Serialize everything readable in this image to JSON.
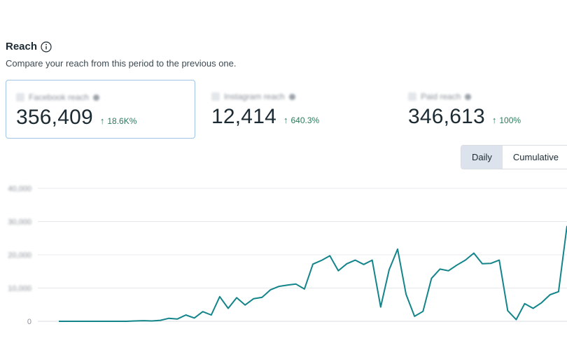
{
  "header": {
    "title": "Reach",
    "subtitle": "Compare your reach from this period to the previous one."
  },
  "cards": [
    {
      "label": "Facebook reach",
      "value": "356,409",
      "delta": "18.6K%",
      "selected": true
    },
    {
      "label": "Instagram reach",
      "value": "12,414",
      "delta": "640.3%",
      "selected": false
    },
    {
      "label": "Paid reach",
      "value": "346,613",
      "delta": "100%",
      "selected": false
    }
  ],
  "toggle": {
    "daily_label": "Daily",
    "cumulative_label": "Cumulative",
    "selected": "Daily"
  },
  "colors": {
    "line": "#13858a",
    "delta": "#2c7a5b",
    "selected_border": "#9fc4e8"
  },
  "chart_data": {
    "type": "line",
    "ylim": [
      0,
      40000
    ],
    "yticks": [
      "40,000",
      "30,000",
      "20,000",
      "10,000",
      "0"
    ],
    "series": [
      {
        "values": [
          0,
          0,
          0,
          0,
          0,
          0,
          0,
          0,
          0,
          100,
          200,
          100,
          300,
          900,
          700,
          1900,
          1000,
          2900,
          1900,
          7400,
          3900,
          7100,
          4900,
          6800,
          7200,
          9500,
          10500,
          10900,
          11200,
          9700,
          17200,
          18300,
          19700,
          15200,
          17300,
          18400,
          17100,
          18400,
          4300,
          15500,
          21700,
          8100,
          1500,
          3000,
          12900,
          15700,
          15200,
          16900,
          18400,
          20500,
          17300,
          17400,
          18400,
          3200,
          500,
          5300,
          3900,
          5600,
          8000,
          8900,
          28700
        ]
      }
    ]
  }
}
